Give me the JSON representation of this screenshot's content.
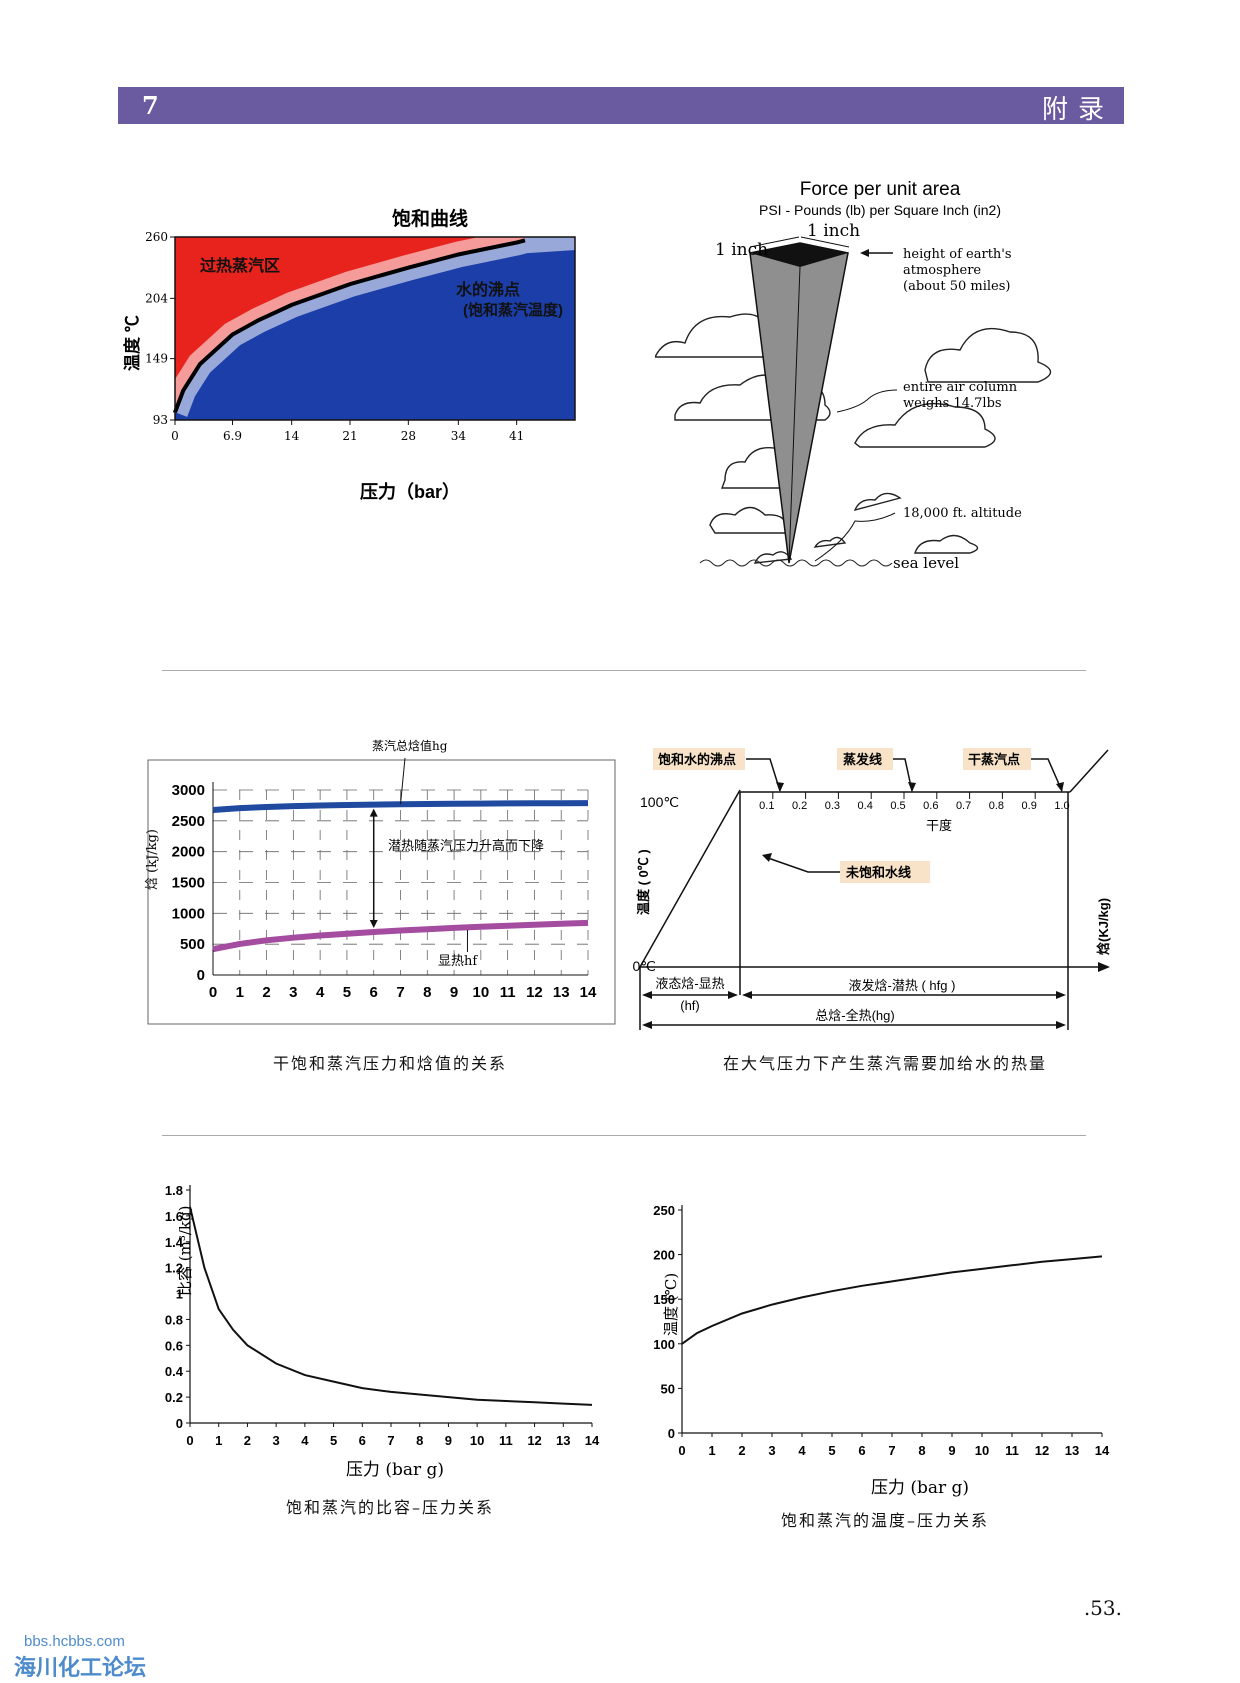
{
  "header": {
    "chapter": "7",
    "title": "附录"
  },
  "page_number": ".53.",
  "watermark": {
    "url": "bbs.hcbbs.com",
    "name": "海川化工论坛"
  },
  "chart_data": [
    {
      "type": "area",
      "title": "饱和曲线",
      "xlabel": "压力（bar）",
      "ylabel": "温度 ℃",
      "x_ticks": [
        "0",
        "6.9",
        "14",
        "21",
        "28",
        "34",
        "41"
      ],
      "y_ticks": [
        "93",
        "149",
        "204",
        "260"
      ],
      "xlim": [
        0,
        48
      ],
      "ylim": [
        93,
        260
      ],
      "region_labels": [
        "过热蒸汽区",
        "水的沸点",
        "(饱和蒸汽温度)"
      ],
      "colors": {
        "superheat": "#e8231d",
        "saturated": "#1c3ea8"
      },
      "curve": {
        "x": [
          0,
          1,
          3,
          6.9,
          10,
          14,
          21,
          28,
          34,
          41,
          42
        ],
        "y": [
          100,
          120,
          144,
          171,
          184,
          198,
          217,
          232,
          244,
          255,
          257
        ]
      }
    },
    {
      "type": "line",
      "xlabel": "",
      "ylabel": "焓 (kJ/kg)",
      "x_ticks": [
        "0",
        "1",
        "2",
        "3",
        "4",
        "5",
        "6",
        "7",
        "8",
        "9",
        "10",
        "11",
        "12",
        "13",
        "14"
      ],
      "y_ticks": [
        "0",
        "500",
        "1000",
        "1500",
        "2000",
        "2500",
        "3000"
      ],
      "ylim": [
        0,
        3000
      ],
      "annotations": [
        "蒸汽总焓值hg",
        "潜热随蒸汽压力升高而下降",
        "显热hf"
      ],
      "series": [
        {
          "color": "#1f4aa0",
          "x": [
            0,
            1,
            2,
            3,
            4,
            5,
            6,
            7,
            8,
            9,
            10,
            11,
            12,
            13,
            14
          ],
          "values": [
            2676,
            2706,
            2725,
            2739,
            2749,
            2757,
            2763,
            2769,
            2773,
            2777,
            2780,
            2782,
            2784,
            2786,
            2787
          ]
        },
        {
          "color": "#a44ca0",
          "x": [
            0,
            1,
            2,
            3,
            4,
            5,
            6,
            7,
            8,
            9,
            10,
            11,
            12,
            13,
            14
          ],
          "values": [
            419,
            505,
            562,
            605,
            640,
            670,
            697,
            721,
            743,
            763,
            781,
            798,
            815,
            830,
            845
          ]
        }
      ]
    },
    {
      "type": "line",
      "title": "",
      "y_top_label": "100℃",
      "y_bottom_label": "0℃",
      "ylabel": "温度 ( 0℃ )",
      "right_label": "焓(KJ/kg)",
      "x_axis_label": "干度",
      "dryness_ticks": [
        "0.1",
        "0.2",
        "0.3",
        "0.4",
        "0.5",
        "0.6",
        "0.7",
        "0.8",
        "0.9",
        "1.0"
      ],
      "callouts": [
        "饱和水的沸点",
        "蒸发线",
        "干蒸汽点",
        "未饱和水线"
      ],
      "spans": [
        "液态焓-显热",
        "(hf)",
        "液发焓-潜热 ( hfg )",
        "总焓-全热(hg)"
      ]
    },
    {
      "type": "line",
      "xlabel": "压力 (bar g)",
      "ylabel": "比容 (m³/kg)",
      "x_ticks": [
        "0",
        "1",
        "2",
        "3",
        "4",
        "5",
        "6",
        "7",
        "8",
        "9",
        "10",
        "11",
        "12",
        "13",
        "14"
      ],
      "y_ticks": [
        "0",
        "0.2",
        "0.4",
        "0.6",
        "0.8",
        "1",
        "1.2",
        "1.4",
        "1.6",
        "1.8"
      ],
      "xlim": [
        0,
        14
      ],
      "ylim": [
        0,
        1.8
      ],
      "x": [
        0,
        0.5,
        1,
        1.5,
        2,
        3,
        4,
        5,
        6,
        7,
        8,
        9,
        10,
        11,
        12,
        13,
        14
      ],
      "values": [
        1.67,
        1.2,
        0.88,
        0.72,
        0.6,
        0.46,
        0.37,
        0.32,
        0.27,
        0.24,
        0.22,
        0.2,
        0.18,
        0.17,
        0.16,
        0.15,
        0.14
      ]
    },
    {
      "type": "line",
      "xlabel": "压力 (bar g)",
      "ylabel": "温度 (℃)",
      "x_ticks": [
        "0",
        "1",
        "2",
        "3",
        "4",
        "5",
        "6",
        "7",
        "8",
        "9",
        "10",
        "11",
        "12",
        "13",
        "14"
      ],
      "y_ticks": [
        "0",
        "50",
        "100",
        "150",
        "200",
        "250"
      ],
      "xlim": [
        0,
        14
      ],
      "ylim": [
        0,
        250
      ],
      "x": [
        0,
        0.5,
        1,
        2,
        3,
        4,
        5,
        6,
        7,
        8,
        9,
        10,
        11,
        12,
        13,
        14
      ],
      "values": [
        100,
        112,
        120,
        134,
        144,
        152,
        159,
        165,
        170,
        175,
        180,
        184,
        188,
        192,
        195,
        198
      ]
    }
  ],
  "diagram": {
    "title": "Force per unit area",
    "subtitle": "PSI  -  Pounds (lb) per Square Inch (in2)",
    "labels": {
      "side1": "1 inch",
      "side2": "1 inch",
      "height": "height of earth's",
      "height2": "atmosphere",
      "height3": "(about 50 miles)",
      "column": "entire air column",
      "column2": "weighs 14.7lbs",
      "altitude": "18,000 ft. altitude",
      "sea": "sea level"
    }
  },
  "captions": {
    "c2": "干饱和蒸汽压力和焓值的关系",
    "c3": "在大气压力下产生蒸汽需要加给水的热量",
    "c4": "饱和蒸汽的比容–压力关系",
    "c5": "饱和蒸汽的温度–压力关系"
  }
}
